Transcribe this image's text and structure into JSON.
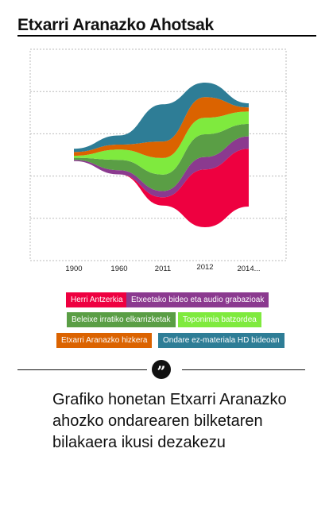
{
  "title": "Etxarri Aranazko Ahotsak",
  "description": "Grafiko honetan Etxarri Aranazko ahozko ondarearen bilketaren bilakaera ikusi dezakezu",
  "quote_icon": "quote-icon",
  "chart_data": {
    "type": "area",
    "stacked": true,
    "stream_offset": "centered",
    "title": "",
    "xlabel": "",
    "ylabel": "",
    "x": [
      "1900",
      "1960",
      "2011",
      "2012",
      "2014..."
    ],
    "grid": true,
    "legend_position": "bottom",
    "series": [
      {
        "name": "Herri Antzerkia",
        "color": "#EE0040",
        "values": [
          0,
          0,
          2,
          14,
          14
        ]
      },
      {
        "name": "Etxeetako bideo eta audio grabazioak",
        "color": "#8B3A8F",
        "values": [
          0.3,
          1,
          1.5,
          3,
          3
        ]
      },
      {
        "name": "Beleixe irratiko elkarrizketak",
        "color": "#5A9E45",
        "values": [
          0.5,
          2.5,
          4,
          5.5,
          3
        ]
      },
      {
        "name": "Toponimia batzordea",
        "color": "#7FEA3E",
        "values": [
          0.5,
          2.5,
          4,
          4,
          3
        ]
      },
      {
        "name": "Etxarri Aranazko hizkera",
        "color": "#DB6300",
        "values": [
          0.9,
          1.2,
          4,
          5,
          1
        ]
      },
      {
        "name": "Ondare ez-materiala HD bideoan",
        "color": "#2E7D96",
        "values": [
          0.8,
          2.2,
          9,
          3.5,
          1
        ]
      }
    ]
  }
}
